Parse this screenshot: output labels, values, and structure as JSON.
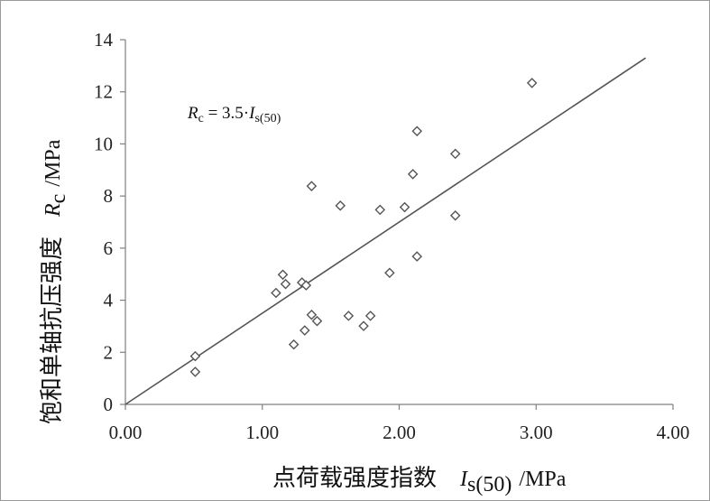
{
  "chart_data": {
    "type": "scatter",
    "title": "",
    "xlabel": {
      "cjk": "点荷载强度指数",
      "symbol": "I",
      "sub": "s(50)",
      "unit": "/MPa"
    },
    "ylabel": {
      "cjk": "饱和单轴抗压强度",
      "symbol": "R",
      "sub": "c",
      "unit": "/MPa"
    },
    "xlim": [
      0,
      4
    ],
    "ylim": [
      0,
      14
    ],
    "x_ticks": [
      0,
      1,
      2,
      3,
      4
    ],
    "x_tick_labels": [
      "0.00",
      "1.00",
      "2.00",
      "3.00",
      "4.00"
    ],
    "y_ticks": [
      0,
      2,
      4,
      6,
      8,
      10,
      12,
      14
    ],
    "y_tick_labels": [
      "0",
      "2",
      "4",
      "6",
      "8",
      "10",
      "12",
      "14"
    ],
    "grid": false,
    "marker": "diamond-open",
    "marker_color": "#555555",
    "line_color": "#555555",
    "fit": {
      "label_parts": {
        "r": "R",
        "rsub": "c",
        "mid": " = 3.5·",
        "i": "I",
        "isub": "s(50)"
      },
      "slope": 3.5,
      "x_range": [
        0,
        3.8
      ]
    },
    "points": [
      {
        "x": 0.51,
        "y": 1.85
      },
      {
        "x": 0.51,
        "y": 1.25
      },
      {
        "x": 1.1,
        "y": 4.28
      },
      {
        "x": 1.15,
        "y": 4.98
      },
      {
        "x": 1.17,
        "y": 4.62
      },
      {
        "x": 1.23,
        "y": 2.3
      },
      {
        "x": 1.29,
        "y": 4.68
      },
      {
        "x": 1.31,
        "y": 2.84
      },
      {
        "x": 1.32,
        "y": 4.57
      },
      {
        "x": 1.36,
        "y": 8.38
      },
      {
        "x": 1.36,
        "y": 3.44
      },
      {
        "x": 1.4,
        "y": 3.2
      },
      {
        "x": 1.57,
        "y": 7.63
      },
      {
        "x": 1.63,
        "y": 3.4
      },
      {
        "x": 1.74,
        "y": 3.01
      },
      {
        "x": 1.79,
        "y": 3.4
      },
      {
        "x": 1.86,
        "y": 7.47
      },
      {
        "x": 1.93,
        "y": 5.05
      },
      {
        "x": 2.04,
        "y": 7.57
      },
      {
        "x": 2.1,
        "y": 8.84
      },
      {
        "x": 2.13,
        "y": 10.49
      },
      {
        "x": 2.13,
        "y": 5.68
      },
      {
        "x": 2.41,
        "y": 9.62
      },
      {
        "x": 2.41,
        "y": 7.25
      },
      {
        "x": 2.97,
        "y": 12.34
      }
    ]
  }
}
